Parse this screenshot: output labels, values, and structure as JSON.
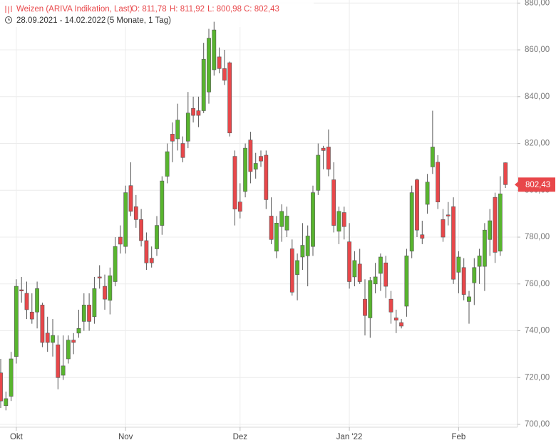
{
  "chart_data": {
    "type": "candlestick",
    "title": "Weizen (ARIVA Indikation, Last)",
    "ohlc_labels": [
      "O: 811,78",
      "H: 811,92",
      "L: 800,98",
      "C: 802,43"
    ],
    "period": "28.09.2021 - 14.02.2022",
    "period_note": "(5 Monate, 1 Tag)",
    "up_color": "#58b52e",
    "down_color": "#e8474a",
    "grid": true,
    "categories": [
      null,
      null,
      null,
      "Okt",
      null,
      null,
      null,
      null,
      null,
      null,
      null,
      null,
      null,
      null,
      null,
      null,
      null,
      null,
      null,
      null,
      null,
      null,
      null,
      null,
      "Nov",
      null,
      null,
      null,
      null,
      null,
      null,
      null,
      null,
      null,
      null,
      null,
      null,
      null,
      null,
      null,
      null,
      null,
      null,
      null,
      null,
      null,
      "Dez",
      null,
      null,
      null,
      null,
      null,
      null,
      null,
      null,
      null,
      null,
      null,
      null,
      null,
      null,
      null,
      null,
      null,
      null,
      null,
      null,
      "Jan '22",
      null,
      null,
      null,
      null,
      null,
      null,
      null,
      null,
      null,
      null,
      null,
      null,
      null,
      null,
      null,
      null,
      null,
      null,
      null,
      null,
      "Feb",
      null,
      null,
      null,
      null,
      null,
      null,
      null,
      null,
      null
    ],
    "series": [
      {
        "open": [
          722,
          708,
          712,
          729,
          757.5,
          756,
          748,
          748,
          751,
          739,
          735,
          734,
          721,
          728,
          736,
          739,
          744,
          751,
          746,
          763,
          759,
          753,
          761,
          780,
          776,
          802,
          793,
          787.5,
          778.5,
          771,
          775,
          785,
          806,
          824,
          822,
          820,
          821,
          835,
          834,
          834,
          842,
          851.5,
          857,
          852,
          854.5,
          814.5,
          795,
          799.5,
          821.5,
          809,
          814.5,
          815,
          789,
          774,
          784.5,
          783,
          775,
          764,
          771.5,
          772,
          776,
          800,
          818,
          818.5,
          804.5,
          782.5,
          790.5,
          778,
          763,
          768.5,
          753.5,
          745.5,
          760,
          764.5,
          769,
          753.5,
          745.5,
          743.5,
          750.5,
          774,
          804.5,
          781,
          794,
          810,
          812,
          787.5,
          789.5,
          793,
          765,
          767,
          752.5,
          760.5,
          767.5,
          767.5,
          779,
          797,
          774,
          811.78
        ],
        "high": [
          728,
          714,
          731,
          762,
          763,
          761,
          756,
          761,
          752,
          746,
          745,
          738,
          738,
          738,
          739,
          749,
          756,
          756,
          763,
          768,
          764,
          767,
          780,
          785,
          802,
          812,
          798,
          792,
          782,
          776,
          789,
          806,
          820,
          829,
          837,
          823,
          842,
          840,
          840,
          863,
          869,
          872,
          861,
          860,
          855,
          817,
          803,
          820,
          825,
          816,
          817,
          817,
          797,
          789,
          794,
          793,
          779,
          773,
          786,
          785,
          802,
          820,
          819,
          826,
          812,
          793,
          793,
          786,
          774,
          775,
          762,
          763,
          769,
          773,
          772,
          757,
          749,
          745,
          775,
          802,
          805,
          787,
          807,
          834,
          815,
          792,
          795,
          797,
          774,
          771,
          757,
          771,
          775,
          786,
          792,
          799,
          806,
          811.92
        ],
        "low": [
          707,
          706,
          710,
          726,
          752,
          745,
          743,
          741,
          733,
          731,
          729,
          715,
          719,
          726,
          730,
          737,
          740,
          740,
          743,
          758,
          749,
          747,
          759,
          773,
          773,
          789,
          784,
          776,
          766,
          767,
          772,
          781,
          803,
          812,
          817,
          812,
          818,
          829,
          827,
          833,
          837,
          849,
          850,
          845,
          823,
          785,
          788,
          797,
          803,
          805,
          810,
          792,
          777,
          771,
          778,
          780,
          755,
          753,
          766,
          759,
          772,
          798,
          809,
          806,
          782,
          777,
          779,
          758,
          759,
          760,
          738,
          737,
          756,
          757,
          754,
          743,
          739,
          741,
          746,
          771,
          780,
          777,
          790,
          807,
          792,
          778,
          785,
          760,
          756,
          753,
          743,
          751,
          760,
          757,
          772,
          769,
          772,
          800.98
        ],
        "close": [
          710,
          711,
          728,
          759,
          757,
          749,
          745,
          758,
          735,
          735,
          738,
          720,
          725,
          736,
          735,
          741,
          751,
          744,
          758,
          762.5,
          753.5,
          763.5,
          776,
          777,
          799,
          791,
          787.5,
          778.5,
          769,
          769,
          785,
          804,
          816.5,
          821,
          830,
          814,
          833,
          832,
          832,
          856,
          865,
          868.5,
          852,
          847,
          824.5,
          792,
          791,
          818,
          808,
          811.5,
          812.5,
          796,
          779,
          786,
          791,
          789,
          756.5,
          770,
          776.5,
          780.5,
          799,
          815,
          817,
          809,
          785,
          791,
          784.5,
          761,
          770,
          761,
          746.5,
          761.5,
          763,
          771.5,
          759,
          748,
          744.5,
          742,
          772,
          799,
          783,
          779.5,
          803.5,
          818.5,
          795,
          780,
          789,
          762,
          771.5,
          755.5,
          754.5,
          767,
          772,
          783,
          787,
          773.5,
          798.5,
          802.43
        ]
      }
    ],
    "last_price": {
      "value": 802.43,
      "label": "802,43"
    },
    "ylim": [
      698.8,
      881.3
    ],
    "yticks": [
      {
        "value": 700,
        "label": "700,00"
      },
      {
        "value": 720,
        "label": "720,00"
      },
      {
        "value": 740,
        "label": "740,00"
      },
      {
        "value": 760,
        "label": "760,00"
      },
      {
        "value": 780,
        "label": "780,00"
      },
      {
        "value": 800,
        "label": "800,00"
      },
      {
        "value": 820,
        "label": "820,00"
      },
      {
        "value": 840,
        "label": "840,00"
      },
      {
        "value": 860,
        "label": "860,00"
      },
      {
        "value": 880,
        "label": "880,00"
      }
    ]
  }
}
